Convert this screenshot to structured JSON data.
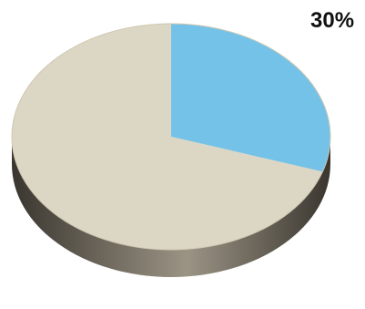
{
  "chart_data": {
    "type": "pie",
    "style": "3d",
    "slices": [
      {
        "label": "",
        "value": 30,
        "color": "#74c2e8"
      },
      {
        "label": "",
        "value": 70,
        "color": "#dcd6c4"
      }
    ],
    "annotations": [
      {
        "text": "30%",
        "slice_index": 0
      }
    ],
    "colors": {
      "side_light": "#9b9485",
      "side_dark": "#3a362f",
      "background": "#ffffff"
    }
  }
}
